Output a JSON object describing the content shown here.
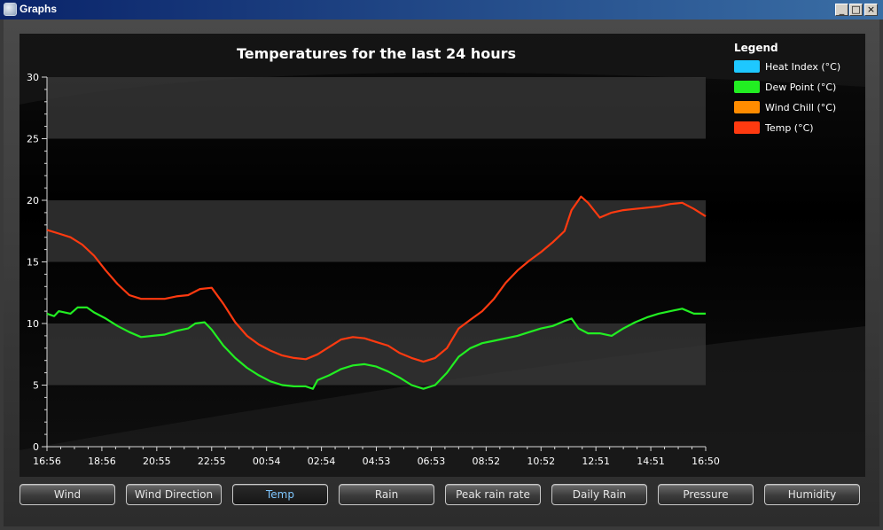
{
  "window": {
    "title": "Graphs",
    "minimize": "_",
    "maximize": "□",
    "close": "×"
  },
  "legend": {
    "title": "Legend"
  },
  "tabs": [
    {
      "label": "Wind"
    },
    {
      "label": "Wind Direction"
    },
    {
      "label": "Temp",
      "active": true
    },
    {
      "label": "Rain"
    },
    {
      "label": "Peak rain rate"
    },
    {
      "label": "Daily Rain"
    },
    {
      "label": "Pressure"
    },
    {
      "label": "Humidity"
    }
  ],
  "chart_data": {
    "type": "line",
    "title": "Temperatures for the last 24 hours",
    "xlabel": "",
    "ylabel": "",
    "ylim": [
      0,
      30
    ],
    "yticks": [
      0,
      5,
      10,
      15,
      20,
      25,
      30
    ],
    "x_tick_labels": [
      "16:56",
      "18:56",
      "20:55",
      "22:55",
      "00:54",
      "02:54",
      "04:53",
      "06:53",
      "08:52",
      "10:52",
      "12:51",
      "14:51",
      "16:50"
    ],
    "legend_position": "top-right",
    "grid": "alternating bands",
    "series": [
      {
        "name": "Heat Index (°C)",
        "color": "#1ec8ff",
        "values": []
      },
      {
        "name": "Dew Point (°C)",
        "color": "#22ee22",
        "values": [
          [
            0,
            10.8
          ],
          [
            0.3,
            10.6
          ],
          [
            0.5,
            11.0
          ],
          [
            1.0,
            10.8
          ],
          [
            1.3,
            11.3
          ],
          [
            1.7,
            11.3
          ],
          [
            2.0,
            10.9
          ],
          [
            2.5,
            10.4
          ],
          [
            3.0,
            9.8
          ],
          [
            3.5,
            9.3
          ],
          [
            4.0,
            8.9
          ],
          [
            4.5,
            9.0
          ],
          [
            5.0,
            9.1
          ],
          [
            5.5,
            9.4
          ],
          [
            6.0,
            9.6
          ],
          [
            6.3,
            10.0
          ],
          [
            6.7,
            10.1
          ],
          [
            7.0,
            9.5
          ],
          [
            7.5,
            8.2
          ],
          [
            8.0,
            7.2
          ],
          [
            8.5,
            6.4
          ],
          [
            9.0,
            5.8
          ],
          [
            9.5,
            5.3
          ],
          [
            10.0,
            5.0
          ],
          [
            10.5,
            4.9
          ],
          [
            11.0,
            4.9
          ],
          [
            11.3,
            4.7
          ],
          [
            11.5,
            5.4
          ],
          [
            12.0,
            5.8
          ],
          [
            12.5,
            6.3
          ],
          [
            13.0,
            6.6
          ],
          [
            13.5,
            6.7
          ],
          [
            14.0,
            6.5
          ],
          [
            14.5,
            6.1
          ],
          [
            15.0,
            5.6
          ],
          [
            15.5,
            5.0
          ],
          [
            16.0,
            4.7
          ],
          [
            16.5,
            5.0
          ],
          [
            17.0,
            6.0
          ],
          [
            17.5,
            7.3
          ],
          [
            18.0,
            8.0
          ],
          [
            18.5,
            8.4
          ],
          [
            19.0,
            8.6
          ],
          [
            19.5,
            8.8
          ],
          [
            20.0,
            9.0
          ],
          [
            20.5,
            9.3
          ],
          [
            21.0,
            9.6
          ],
          [
            21.5,
            9.8
          ],
          [
            22.0,
            10.2
          ],
          [
            22.3,
            10.4
          ],
          [
            22.6,
            9.6
          ],
          [
            23.0,
            9.2
          ],
          [
            23.5,
            9.2
          ],
          [
            24.0,
            9.0
          ],
          [
            24.5,
            9.6
          ],
          [
            25.0,
            10.1
          ],
          [
            25.5,
            10.5
          ],
          [
            26.0,
            10.8
          ],
          [
            26.5,
            11.0
          ],
          [
            27.0,
            11.2
          ],
          [
            27.5,
            10.8
          ],
          [
            28.0,
            10.8
          ]
        ]
      },
      {
        "name": "Wind Chill (°C)",
        "color": "#ff8c00",
        "values": []
      },
      {
        "name": "Temp (°C)",
        "color": "#ff3a10",
        "values": [
          [
            0,
            17.6
          ],
          [
            0.5,
            17.3
          ],
          [
            1.0,
            17.0
          ],
          [
            1.5,
            16.4
          ],
          [
            2.0,
            15.5
          ],
          [
            2.5,
            14.3
          ],
          [
            3.0,
            13.2
          ],
          [
            3.5,
            12.3
          ],
          [
            4.0,
            12.0
          ],
          [
            4.5,
            12.0
          ],
          [
            5.0,
            12.0
          ],
          [
            5.5,
            12.2
          ],
          [
            6.0,
            12.3
          ],
          [
            6.5,
            12.8
          ],
          [
            7.0,
            12.9
          ],
          [
            7.5,
            11.6
          ],
          [
            8.0,
            10.1
          ],
          [
            8.5,
            9.0
          ],
          [
            9.0,
            8.3
          ],
          [
            9.5,
            7.8
          ],
          [
            10.0,
            7.4
          ],
          [
            10.5,
            7.2
          ],
          [
            11.0,
            7.1
          ],
          [
            11.5,
            7.5
          ],
          [
            12.0,
            8.1
          ],
          [
            12.5,
            8.7
          ],
          [
            13.0,
            8.9
          ],
          [
            13.5,
            8.8
          ],
          [
            14.0,
            8.5
          ],
          [
            14.5,
            8.2
          ],
          [
            15.0,
            7.6
          ],
          [
            15.5,
            7.2
          ],
          [
            16.0,
            6.9
          ],
          [
            16.5,
            7.2
          ],
          [
            17.0,
            8.0
          ],
          [
            17.5,
            9.6
          ],
          [
            18.0,
            10.3
          ],
          [
            18.5,
            11.0
          ],
          [
            19.0,
            12.0
          ],
          [
            19.5,
            13.3
          ],
          [
            20.0,
            14.3
          ],
          [
            20.5,
            15.1
          ],
          [
            21.0,
            15.8
          ],
          [
            21.5,
            16.6
          ],
          [
            22.0,
            17.5
          ],
          [
            22.3,
            19.2
          ],
          [
            22.7,
            20.3
          ],
          [
            23.0,
            19.8
          ],
          [
            23.5,
            18.6
          ],
          [
            24.0,
            19.0
          ],
          [
            24.5,
            19.2
          ],
          [
            25.0,
            19.3
          ],
          [
            25.5,
            19.4
          ],
          [
            26.0,
            19.5
          ],
          [
            26.5,
            19.7
          ],
          [
            27.0,
            19.8
          ],
          [
            27.5,
            19.3
          ],
          [
            28.0,
            18.7
          ]
        ]
      }
    ]
  }
}
